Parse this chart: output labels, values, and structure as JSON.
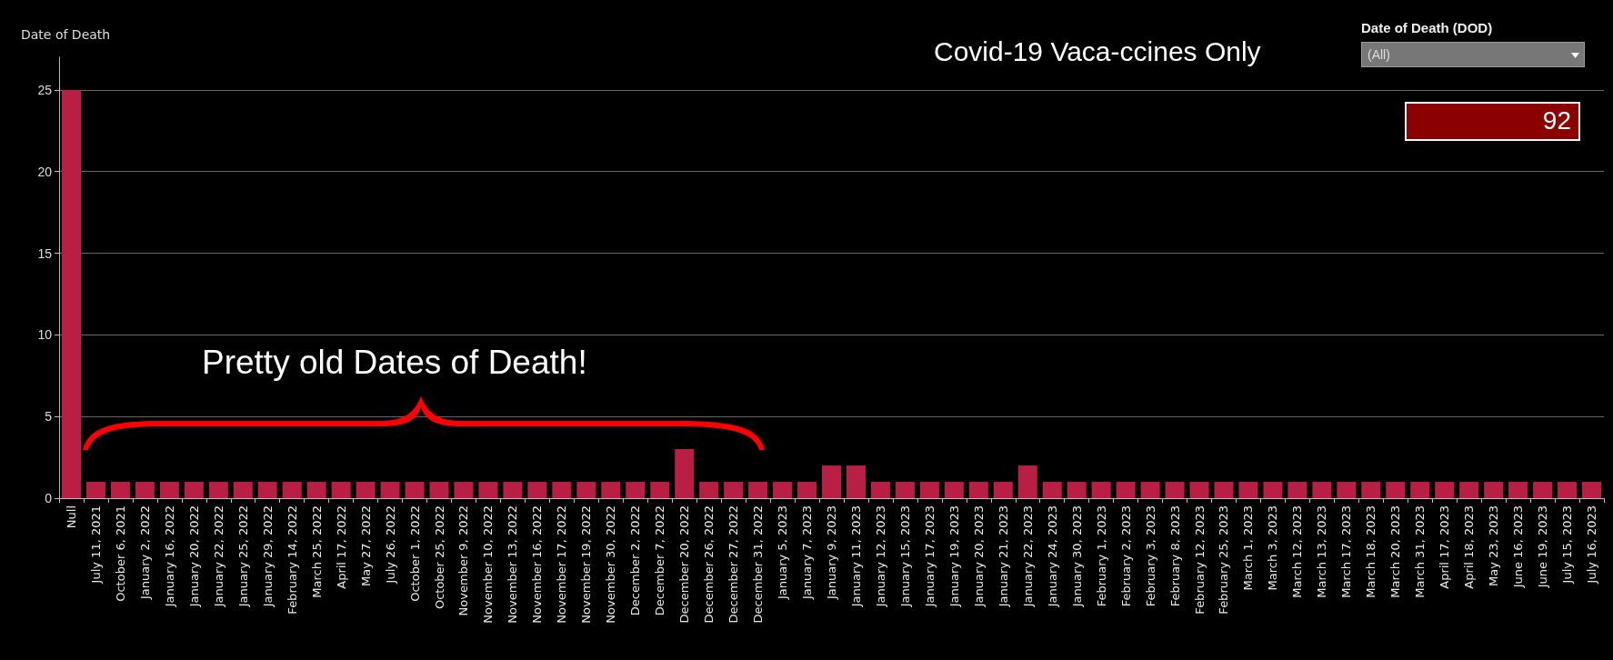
{
  "chart_data": {
    "type": "bar",
    "title": "Covid-19 Vaca-ccines Only",
    "ylabel": "Date of Death",
    "categories": [
      "Null",
      "July 11, 2021",
      "October 6, 2021",
      "January 2, 2022",
      "January 16, 2022",
      "January 20, 2022",
      "January 22, 2022",
      "January 25, 2022",
      "January 29, 2022",
      "February 14, 2022",
      "March 25, 2022",
      "April 17, 2022",
      "May 27, 2022",
      "July 26, 2022",
      "October 1, 2022",
      "October 25, 2022",
      "November 9, 2022",
      "November 10, 2022",
      "November 13, 2022",
      "November 16, 2022",
      "November 17, 2022",
      "November 19, 2022",
      "November 30, 2022",
      "December 2, 2022",
      "December 7, 2022",
      "December 20, 2022",
      "December 26, 2022",
      "December 27, 2022",
      "December 31, 2022",
      "January 5, 2023",
      "January 7, 2023",
      "January 9, 2023",
      "January 11, 2023",
      "January 12, 2023",
      "January 15, 2023",
      "January 17, 2023",
      "January 19, 2023",
      "January 20, 2023",
      "January 21, 2023",
      "January 22, 2023",
      "January 24, 2023",
      "January 30, 2023",
      "February 1, 2023",
      "February 2, 2023",
      "February 3, 2023",
      "February 8, 2023",
      "February 12, 2023",
      "February 25, 2023",
      "March 1, 2023",
      "March 3, 2023",
      "March 12, 2023",
      "March 13, 2023",
      "March 17, 2023",
      "March 18, 2023",
      "March 20, 2023",
      "March 31, 2023",
      "April 17, 2023",
      "April 18, 2023",
      "May 23, 2023",
      "June 16, 2023",
      "June 19, 2023",
      "July 15, 2023",
      "July 16, 2023"
    ],
    "values": [
      25,
      1,
      1,
      1,
      1,
      1,
      1,
      1,
      1,
      1,
      1,
      1,
      1,
      1,
      1,
      1,
      1,
      1,
      1,
      1,
      1,
      1,
      1,
      1,
      1,
      3,
      1,
      1,
      1,
      1,
      1,
      2,
      2,
      1,
      1,
      1,
      1,
      1,
      1,
      2,
      1,
      1,
      1,
      1,
      1,
      1,
      1,
      1,
      1,
      1,
      1,
      1,
      1,
      1,
      1,
      1,
      1,
      1,
      1,
      1,
      1,
      1,
      1
    ],
    "color": "#b91e45",
    "ylim": [
      0,
      27
    ],
    "yticks": [
      0,
      5,
      10,
      15,
      20,
      25
    ],
    "grid": "y",
    "annotations": [
      "Pretty old Dates of Death!",
      "Date of Death (DOD)",
      "(All)",
      "92"
    ]
  }
}
